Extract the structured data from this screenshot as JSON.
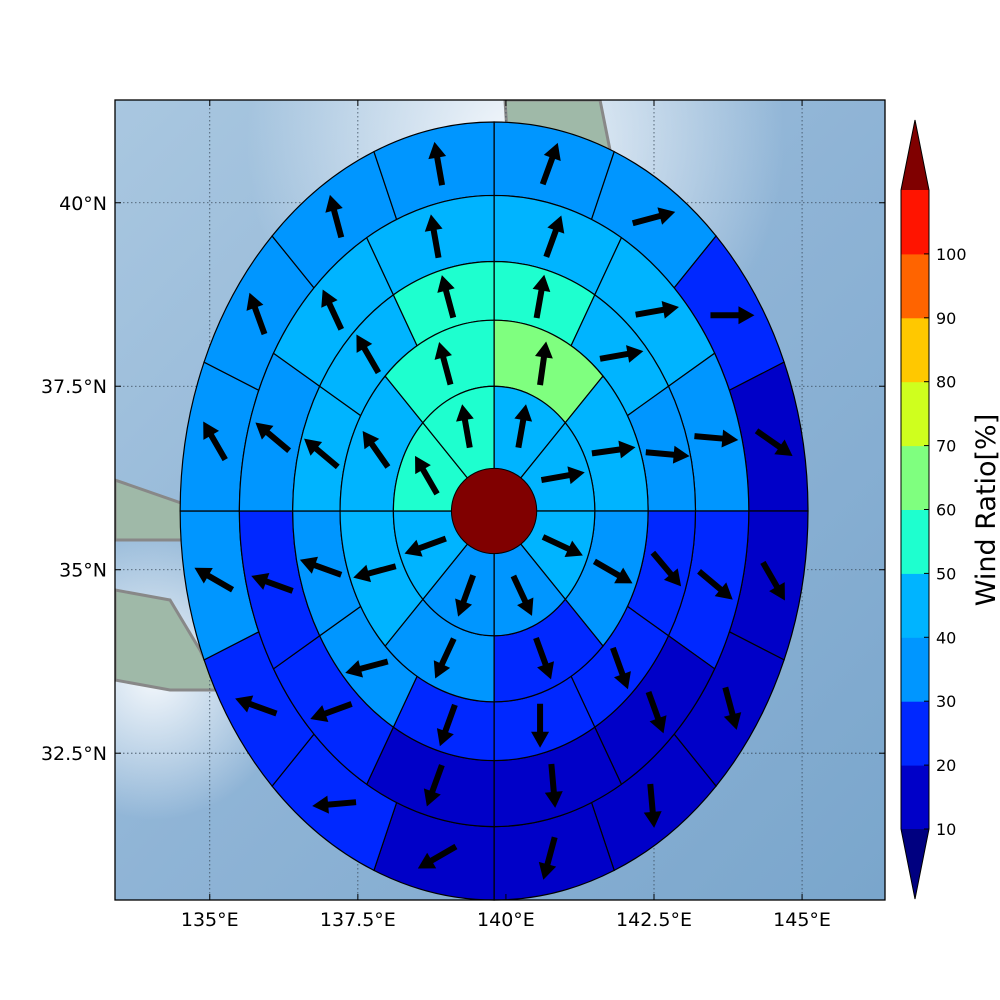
{
  "chart_data": {
    "type": "polar-sector-map",
    "title": "",
    "x_ticks": [
      {
        "value": 135,
        "label": "135°E"
      },
      {
        "value": 137.5,
        "label": "137.5°E"
      },
      {
        "value": 140,
        "label": "140°E"
      },
      {
        "value": 142.5,
        "label": "142.5°E"
      },
      {
        "value": 145,
        "label": "145°E"
      }
    ],
    "y_ticks": [
      {
        "value": 40,
        "label": "40°N"
      },
      {
        "value": 37.5,
        "label": "37.5°N"
      },
      {
        "value": 35,
        "label": "35°N"
      },
      {
        "value": 32.5,
        "label": "32.5°N"
      }
    ],
    "xlim": [
      133.4,
      146.4
    ],
    "ylim": [
      30.5,
      41.4
    ],
    "grid": true,
    "colorbar": {
      "label": "Wind Ratio[%]",
      "bounds": [
        10,
        20,
        30,
        40,
        50,
        60,
        70,
        80,
        90,
        100
      ],
      "tick_labels": [
        "10",
        "20",
        "30",
        "40",
        "50",
        "60",
        "70",
        "80",
        "90",
        "100"
      ],
      "colors": [
        "#0000c8",
        "#0028ff",
        "#0096ff",
        "#00b4ff",
        "#1effcf",
        "#7fff7f",
        "#cfff1e",
        "#ffc800",
        "#ff6400",
        "#ff1400"
      ],
      "under_color": "#000080",
      "over_color": "#800000",
      "extend": "both"
    },
    "center": {
      "lon": 139.8,
      "lat": 35.8,
      "value": 100,
      "color": "#800000"
    },
    "rings": [
      {
        "r_deg": 1.7,
        "sectors": 8,
        "offset_deg": 0,
        "values": [
          48,
          45,
          40,
          32,
          38,
          42,
          55,
          55
        ],
        "arrows_deg": [
          10,
          80,
          115,
          155,
          200,
          250,
          330,
          350
        ]
      },
      {
        "r_deg": 2.6,
        "sectors": 8,
        "offset_deg": 0,
        "values": [
          65,
          48,
          36,
          28,
          32,
          40,
          45,
          58
        ],
        "arrows_deg": [
          8,
          82,
          120,
          160,
          205,
          255,
          325,
          345
        ]
      },
      {
        "r_deg": 3.4,
        "sectors": 12,
        "offset_deg": 0,
        "values": [
          55,
          45,
          35,
          25,
          22,
          20,
          25,
          32,
          35,
          42,
          45,
          50
        ],
        "arrows_deg": [
          10,
          80,
          95,
          140,
          160,
          180,
          200,
          255,
          290,
          310,
          330,
          345
        ]
      },
      {
        "r_deg": 4.3,
        "sectors": 12,
        "offset_deg": 0,
        "values": [
          45,
          40,
          30,
          20,
          18,
          15,
          18,
          22,
          28,
          35,
          40,
          42
        ],
        "arrows_deg": [
          20,
          80,
          95,
          130,
          160,
          175,
          200,
          250,
          290,
          310,
          335,
          350
        ]
      },
      {
        "r_deg": 5.3,
        "sectors": 16,
        "offset_deg": 0,
        "values": [
          32,
          30,
          20,
          15,
          14,
          12,
          12,
          14,
          18,
          22,
          22,
          30,
          32,
          35,
          32,
          30
        ],
        "arrows_deg": [
          20,
          75,
          90,
          125,
          150,
          165,
          175,
          195,
          240,
          265,
          290,
          300,
          330,
          340,
          345,
          350
        ]
      }
    ]
  }
}
